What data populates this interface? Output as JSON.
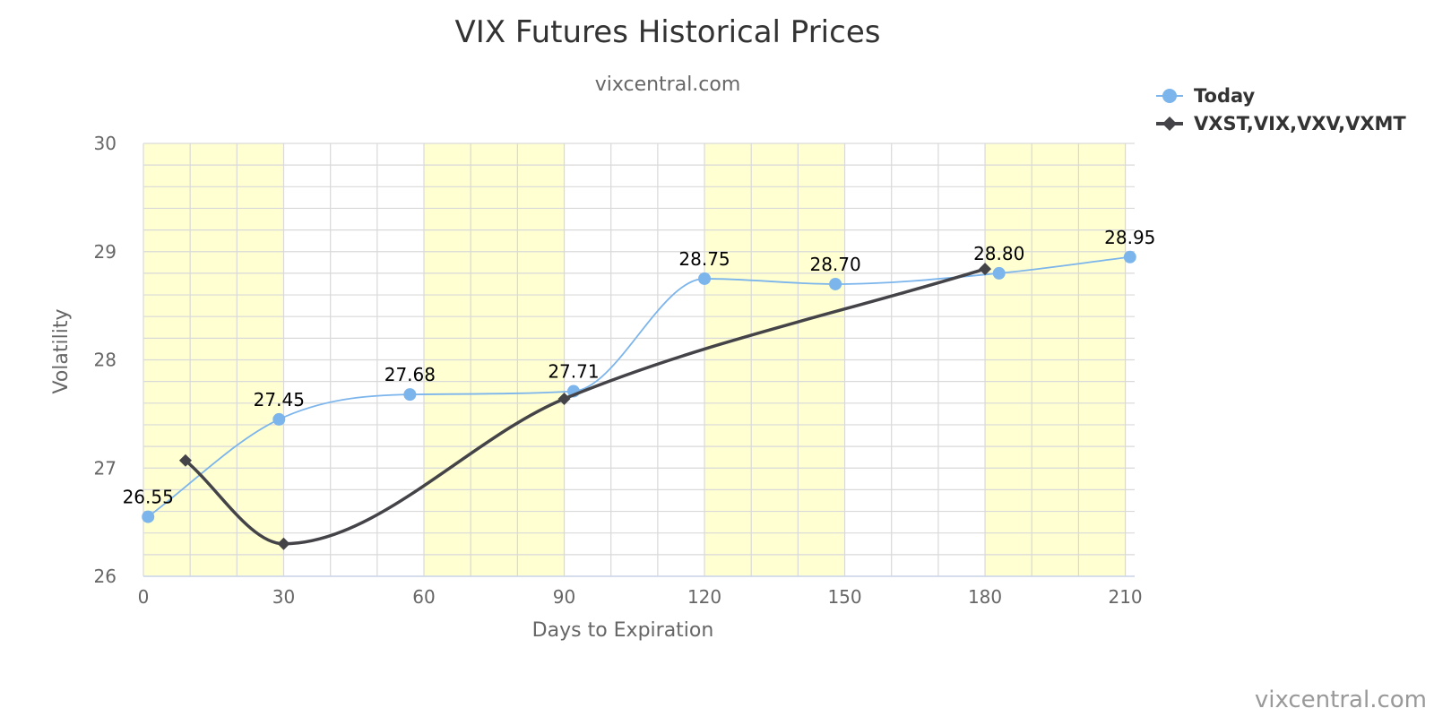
{
  "chart_data": {
    "type": "line",
    "title": "VIX Futures Historical Prices",
    "subtitle": "vixcentral.com",
    "xlabel": "Days to Expiration",
    "ylabel": "Volatility",
    "credit": "vixcentral.com",
    "xlim": [
      0,
      212
    ],
    "ylim": [
      26,
      30
    ],
    "x_ticks": [
      0,
      30,
      60,
      90,
      120,
      150,
      180,
      210
    ],
    "y_ticks": [
      26,
      27,
      28,
      29,
      30
    ],
    "grid": true,
    "legend_position": "top-right",
    "bands": [
      [
        0,
        30
      ],
      [
        60,
        90
      ],
      [
        120,
        150
      ],
      [
        180,
        210
      ]
    ],
    "colors": {
      "band": "#ffffd2",
      "grid": "#d9d9d9",
      "today": "#7cb5ec",
      "term": "#434348"
    },
    "series": [
      {
        "name": "Today",
        "marker": "circle",
        "x": [
          1,
          29,
          57,
          92,
          120,
          148,
          183,
          211
        ],
        "values": [
          26.55,
          27.45,
          27.68,
          27.71,
          28.75,
          28.7,
          28.8,
          28.95
        ],
        "labels": [
          "26.55",
          "27.45",
          "27.68",
          "27.71",
          "28.75",
          "28.70",
          "28.80",
          "28.95"
        ]
      },
      {
        "name": "VXST,VIX,VXV,VXMT",
        "marker": "diamond",
        "x": [
          9,
          30,
          90,
          180
        ],
        "values": [
          27.07,
          26.3,
          27.64,
          28.84
        ]
      }
    ]
  }
}
